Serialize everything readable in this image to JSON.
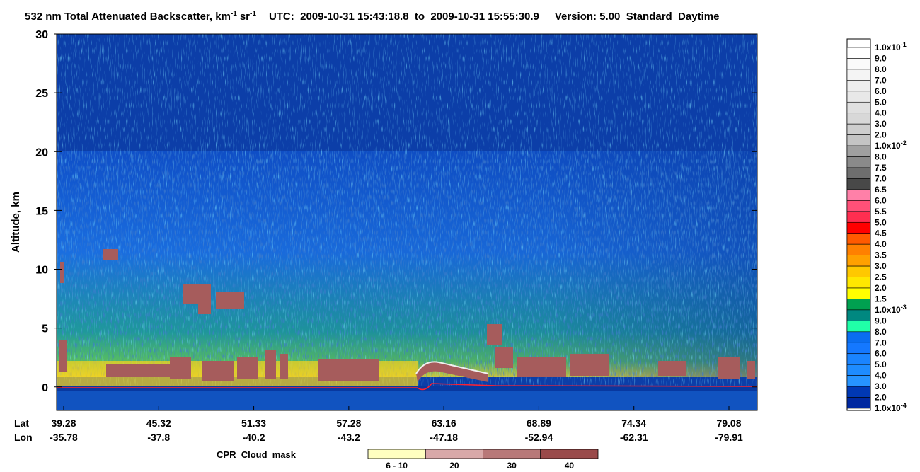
{
  "chart_data": {
    "type": "curtain",
    "title": {
      "text": "532 nm Total Attenuated Backscatter, km",
      "exp": "-1",
      "unit": "sr",
      "unit_exp": "-1",
      "utc": "UTC:  2009-10-31 15:43:18.8  to  2009-10-31 15:55:30.9",
      "version": "Version: 5.00  Standard  Daytime"
    },
    "ylabel": "Altitude, km",
    "ylim": [
      -2,
      30
    ],
    "yticks": [
      0,
      5,
      10,
      15,
      20,
      25,
      30
    ],
    "x_labels": {
      "lat_name": "Lat",
      "lon_name": "Lon",
      "lat": [
        39.28,
        45.32,
        51.33,
        57.28,
        63.16,
        68.89,
        74.34,
        79.08
      ],
      "lon": [
        -35.78,
        -37.8,
        -40.2,
        -43.2,
        -47.18,
        -52.94,
        -62.31,
        -79.91
      ]
    },
    "colorbar": {
      "labels": [
        {
          "base": "1.0x10",
          "exp": "-1"
        },
        "9.0",
        "8.0",
        "7.0",
        "6.0",
        "5.0",
        "4.0",
        "3.0",
        "2.0",
        {
          "base": "1.0x10",
          "exp": "-2"
        },
        "8.0",
        "7.5",
        "7.0",
        "6.5",
        "6.0",
        "5.5",
        "5.0",
        "4.5",
        "4.0",
        "3.5",
        "3.0",
        "2.5",
        "2.0",
        "1.5",
        {
          "base": "1.0x10",
          "exp": "-3"
        },
        "9.0",
        "8.0",
        "7.0",
        "6.0",
        "5.0",
        "4.0",
        "3.0",
        "2.0",
        {
          "base": "1.0x10",
          "exp": "-4"
        }
      ],
      "colors": [
        "#ffffff",
        "#fafafa",
        "#f4f4f4",
        "#eeeeee",
        "#e8e8e8",
        "#e0e0e0",
        "#d8d8d8",
        "#cecece",
        "#c4c4c4",
        "#a0a0a0",
        "#8a8a8a",
        "#6e6e6e",
        "#484848",
        "#ff80a8",
        "#ff5078",
        "#ff2e50",
        "#ff0000",
        "#ff5a00",
        "#ff8000",
        "#ffa000",
        "#ffc800",
        "#ffe800",
        "#ffff00",
        "#00a050",
        "#008880",
        "#20ffa8",
        "#0a6ef0",
        "#1478ff",
        "#1a84ff",
        "#1e8cff",
        "#2694ff",
        "#0038b4",
        "#0028a0"
      ]
    },
    "cpr_legend": {
      "title": "CPR_Cloud_mask",
      "categories": [
        "6 - 10",
        20,
        30,
        40
      ],
      "colors": [
        "#ffffc0",
        "#d8a8a8",
        "#b87878",
        "#9a4a4a"
      ]
    }
  }
}
